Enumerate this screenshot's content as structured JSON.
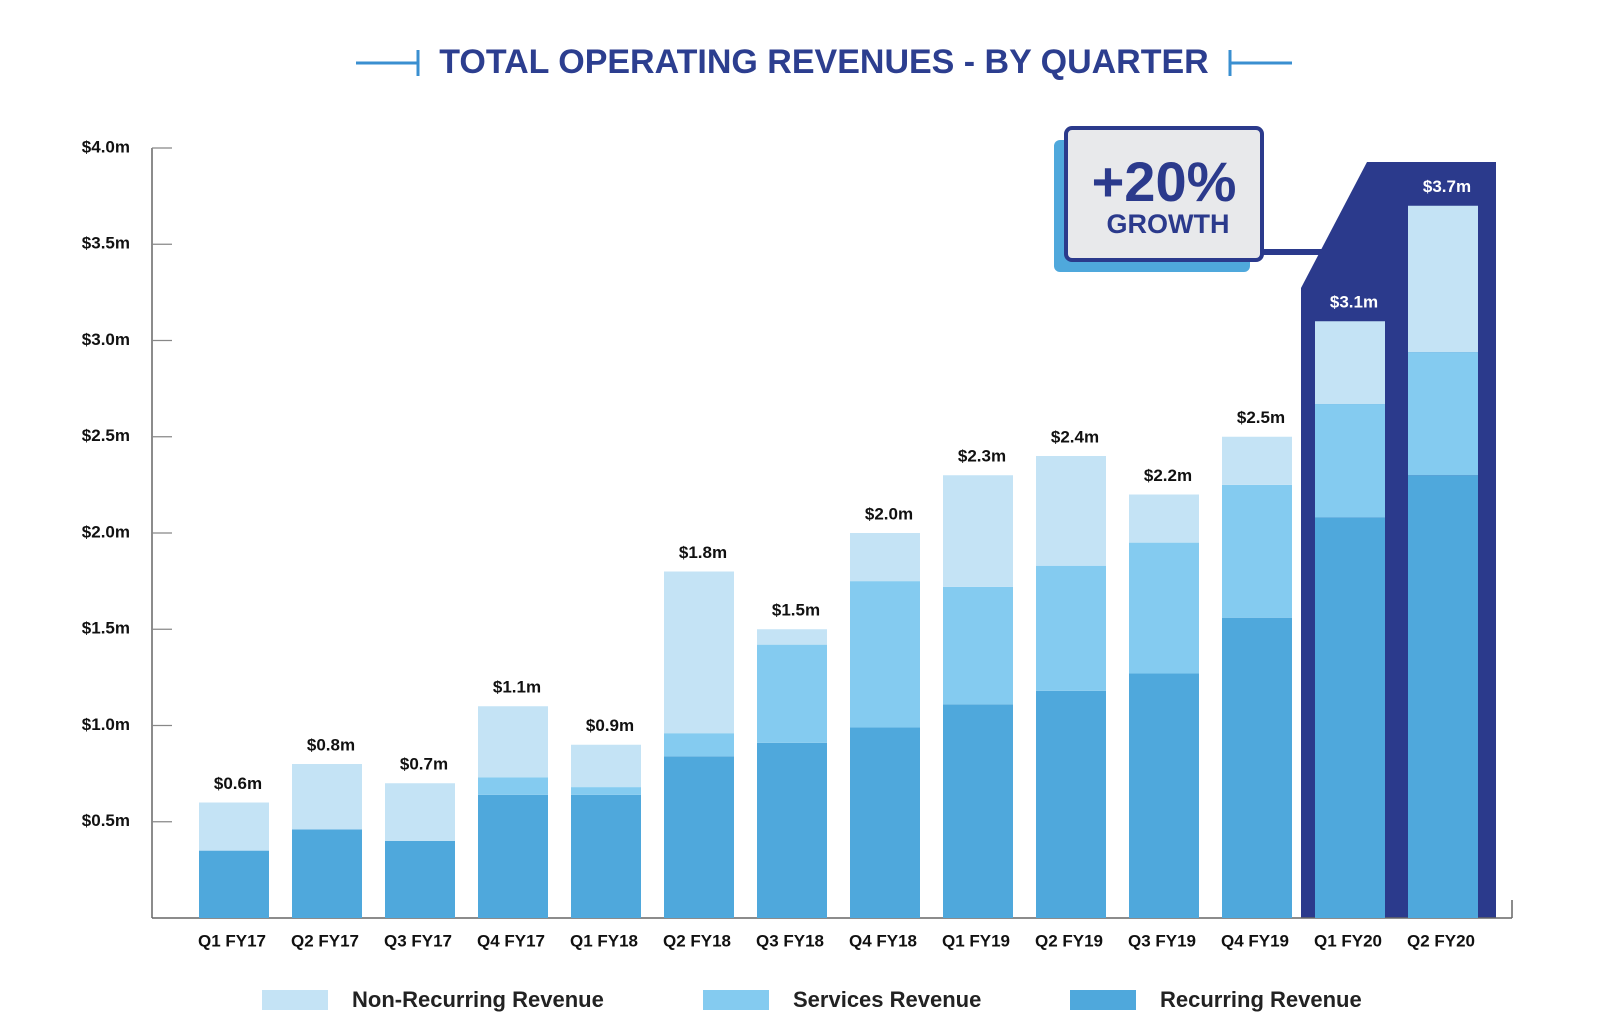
{
  "chart_data": {
    "type": "stacked_bar",
    "title": "TOTAL OPERATING REVENUES - BY QUARTER",
    "categories": [
      "Q1 FY17",
      "Q2 FY17",
      "Q3 FY17",
      "Q4 FY17",
      "Q1 FY18",
      "Q2 FY18",
      "Q3 FY18",
      "Q4 FY18",
      "Q1 FY19",
      "Q2 FY19",
      "Q3 FY19",
      "Q4 FY19",
      "Q1 FY20",
      "Q2 FY20"
    ],
    "series": [
      {
        "name": "Non-Recurring Revenue",
        "color": "#c4e3f5",
        "values": [
          0.25,
          0.34,
          0.3,
          0.37,
          0.22,
          0.84,
          0.08,
          0.25,
          0.58,
          0.57,
          0.25,
          0.25,
          0.43,
          0.76
        ]
      },
      {
        "name": "Services Revenue",
        "color": "#84cbf0",
        "values": [
          0,
          0,
          0,
          0.09,
          0.04,
          0.12,
          0.51,
          0.76,
          0.61,
          0.65,
          0.68,
          0.69,
          0.59,
          0.64
        ]
      },
      {
        "name": "Recurring Revenue",
        "color": "#4fa8dc",
        "values": [
          0.35,
          0.46,
          0.4,
          0.64,
          0.64,
          0.84,
          0.91,
          0.99,
          1.11,
          1.18,
          1.27,
          1.56,
          2.08,
          2.3
        ]
      }
    ],
    "totals": {
      "values": [
        0.6,
        0.8,
        0.7,
        1.1,
        0.9,
        1.8,
        1.5,
        2.0,
        2.3,
        2.4,
        2.2,
        2.5,
        3.1,
        3.7
      ],
      "value_labels": [
        "$0.6m",
        "$0.8m",
        "$0.7m",
        "$1.1m",
        "$0.9m",
        "$1.8m",
        "$1.5m",
        "$2.0m",
        "$2.3m",
        "$2.4m",
        "$2.2m",
        "$2.5m",
        "$3.1m",
        "$3.7m"
      ]
    },
    "ylim": [
      0,
      4
    ],
    "yticks": [
      {
        "value": 0.5,
        "label": "$0.5m"
      },
      {
        "value": 1.0,
        "label": "$1.0m"
      },
      {
        "value": 1.5,
        "label": "$1.5m"
      },
      {
        "value": 2.0,
        "label": "$2.0m"
      },
      {
        "value": 2.5,
        "label": "$2.5m"
      },
      {
        "value": 3.0,
        "label": "$3.0m"
      },
      {
        "value": 3.5,
        "label": "$3.5m"
      },
      {
        "value": 4.0,
        "label": "$4.0m"
      }
    ],
    "annotation": {
      "value": "+20%",
      "label": "GROWTH"
    },
    "highlight_color": "#2b3a8c",
    "legend": "bottom"
  }
}
